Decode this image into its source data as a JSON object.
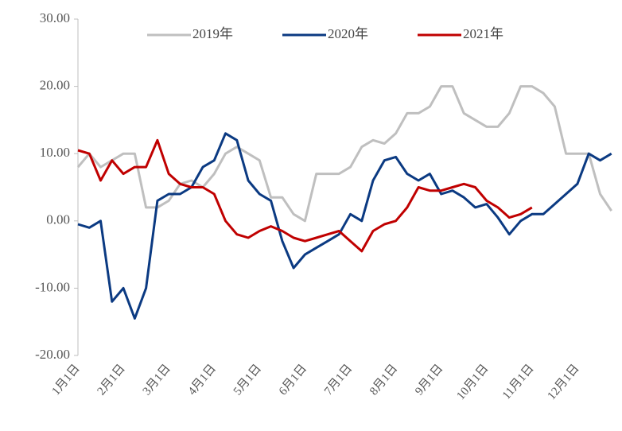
{
  "chart_data": {
    "type": "line",
    "categories": [
      "1月1日",
      null,
      null,
      null,
      "2月1日",
      null,
      null,
      null,
      "3月1日",
      null,
      null,
      null,
      "4月1日",
      null,
      null,
      null,
      "5月1日",
      null,
      null,
      null,
      "6月1日",
      null,
      null,
      null,
      "7月1日",
      null,
      null,
      null,
      "8月1日",
      null,
      null,
      null,
      "9月1日",
      null,
      null,
      null,
      "10月1日",
      null,
      null,
      null,
      "11月1日",
      null,
      null,
      null,
      "12月1日",
      null,
      null,
      null
    ],
    "series": [
      {
        "name": "2019年",
        "color": "#bfbfbf",
        "values": [
          8,
          10,
          8,
          9,
          10,
          10,
          2,
          2,
          3,
          5.5,
          6,
          5,
          7,
          10,
          11,
          10,
          9,
          3.5,
          3.5,
          1,
          0,
          7,
          7,
          7,
          8,
          11,
          12,
          11.5,
          13,
          16,
          16,
          17,
          20,
          20,
          16,
          15,
          14,
          14,
          16,
          20,
          20,
          19,
          17,
          10,
          10,
          10,
          4,
          1.5
        ]
      },
      {
        "name": "2020年",
        "color": "#0b3a82",
        "values": [
          -0.5,
          -1,
          0,
          -12,
          -10,
          -14.5,
          -10,
          3,
          4,
          4,
          5,
          8,
          9,
          13,
          12,
          6,
          4,
          3,
          -3,
          -7,
          -5,
          -4,
          -3,
          -2,
          1,
          0,
          6,
          9,
          9.5,
          7,
          6,
          7,
          4,
          4.5,
          3.5,
          2,
          2.5,
          0.5,
          -2,
          0,
          1,
          1,
          2.5,
          4,
          5.5,
          10,
          9,
          10
        ]
      },
      {
        "name": "2021年",
        "color": "#c00000",
        "values": [
          10.5,
          10,
          6,
          9,
          7,
          8,
          8,
          12,
          7,
          5.5,
          5,
          5,
          4,
          0,
          -2,
          -2.5,
          -1.5,
          -0.8,
          -1.5,
          -2.5,
          -3,
          -2.5,
          -2,
          -1.5,
          -3,
          -4.5,
          -1.5,
          -0.5,
          0,
          2,
          5,
          4.5,
          4.5,
          5,
          5.5,
          5,
          3,
          2,
          0.5,
          1,
          2,
          null,
          null,
          null,
          null,
          null,
          null,
          null
        ]
      }
    ],
    "ylim": [
      -20,
      30
    ],
    "yticks": [
      {
        "value": -20,
        "label": "-20.00"
      },
      {
        "value": -10,
        "label": "-10.00"
      },
      {
        "value": 0,
        "label": "0.00"
      },
      {
        "value": 10,
        "label": "10.00"
      },
      {
        "value": 20,
        "label": "20.00"
      },
      {
        "value": 30,
        "label": "30.00"
      }
    ]
  }
}
